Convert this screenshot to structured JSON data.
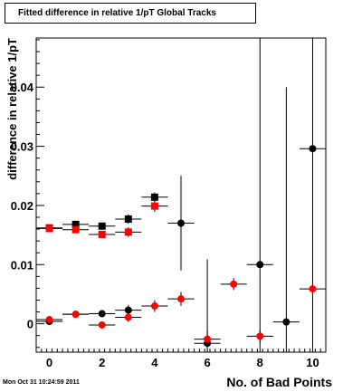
{
  "title": "Fitted difference in relative 1/pT  Global Tracks",
  "footer_text": "Mon Oct 31 10:24:59 2011",
  "chart_data": {
    "type": "scatter",
    "xlabel": "No. of Bad Points",
    "ylabel": "difference in relative 1/pT",
    "xlim": [
      -0.5,
      10.5
    ],
    "ylim": [
      -0.0048,
      0.0483
    ],
    "xticks": [
      0,
      2,
      4,
      6,
      8,
      10
    ],
    "xtick_labels": [
      "0",
      "2",
      "4",
      "6",
      "8",
      "10"
    ],
    "yticks": [
      0,
      0.01,
      0.02,
      0.03,
      0.04
    ],
    "ytick_labels": [
      "0",
      "0.01",
      "0.02",
      "0.03",
      "0.04"
    ],
    "grid": false,
    "series": [
      {
        "marker": "square",
        "color": "#000000",
        "points": [
          {
            "x": 0,
            "y": 0.0162,
            "xerr": 0.5,
            "yerr": 0.0004
          },
          {
            "x": 1,
            "y": 0.0168,
            "xerr": 0.5,
            "yerr": 0.0004
          },
          {
            "x": 2,
            "y": 0.0165,
            "xerr": 0.5,
            "yerr": 0.0004
          },
          {
            "x": 3,
            "y": 0.0177,
            "xerr": 0.5,
            "yerr": 0.0008
          },
          {
            "x": 4,
            "y": 0.0214,
            "xerr": 0.5,
            "yerr": 0.0008
          }
        ]
      },
      {
        "marker": "square",
        "color": "#ff0000",
        "points": [
          {
            "x": 0,
            "y": 0.0161,
            "xerr": 0.5,
            "yerr": 0.0004
          },
          {
            "x": 1,
            "y": 0.0159,
            "xerr": 0.5,
            "yerr": 0.0004
          },
          {
            "x": 2,
            "y": 0.0151,
            "xerr": 0.5,
            "yerr": 0.0005
          },
          {
            "x": 3,
            "y": 0.0155,
            "xerr": 0.5,
            "yerr": 0.0008
          },
          {
            "x": 4,
            "y": 0.0199,
            "xerr": 0.5,
            "yerr": 0.001
          }
        ]
      },
      {
        "marker": "circle",
        "color": "#000000",
        "points": [
          {
            "x": 0,
            "y": 0.0004,
            "xerr": 0.5,
            "yerr": 0.0004
          },
          {
            "x": 1,
            "y": 0.0016,
            "xerr": 0.5,
            "yerr": 0.0004
          },
          {
            "x": 2,
            "y": 0.0017,
            "xerr": 0.5,
            "yerr": 0.0005
          },
          {
            "x": 3,
            "y": 0.0023,
            "xerr": 0.5,
            "yerr": 0.0009
          },
          {
            "x": 5,
            "y": 0.017,
            "xerr": 0.5,
            "yerr": 0.008
          },
          {
            "x": 6,
            "y": -0.0033,
            "xerr": 0.5,
            "yerr": 0.0142
          },
          {
            "x": 8,
            "y": 0.01,
            "xerr": 0.5,
            "yerr": 0.04
          },
          {
            "x": 9,
            "y": 0.0003,
            "xerr": 0.5,
            "yerr": 0.0397
          },
          {
            "x": 10,
            "y": 0.0296,
            "xerr": 0.5,
            "yerr": 0.05
          }
        ]
      },
      {
        "marker": "circle",
        "color": "#ff0000",
        "points": [
          {
            "x": 0,
            "y": 0.0007,
            "xerr": 0.5,
            "yerr": 0.0003
          },
          {
            "x": 1,
            "y": 0.0016,
            "xerr": 0.5,
            "yerr": 0.0004
          },
          {
            "x": 2,
            "y": -0.0002,
            "xerr": 0.5,
            "yerr": 0.0005
          },
          {
            "x": 3,
            "y": 0.0011,
            "xerr": 0.5,
            "yerr": 0.0008
          },
          {
            "x": 4,
            "y": 0.003,
            "xerr": 0.5,
            "yerr": 0.001
          },
          {
            "x": 5,
            "y": 0.0042,
            "xerr": 0.5,
            "yerr": 0.0012
          },
          {
            "x": 6,
            "y": -0.0026,
            "xerr": 0.5,
            "yerr": 0.0015
          },
          {
            "x": 7,
            "y": 0.0067,
            "xerr": 0.5,
            "yerr": 0.001
          },
          {
            "x": 8,
            "y": -0.0021,
            "xerr": 0.5,
            "yerr": 0.001
          },
          {
            "x": 10,
            "y": 0.0059,
            "xerr": 0.5,
            "yerr": 0.001
          }
        ]
      }
    ]
  }
}
